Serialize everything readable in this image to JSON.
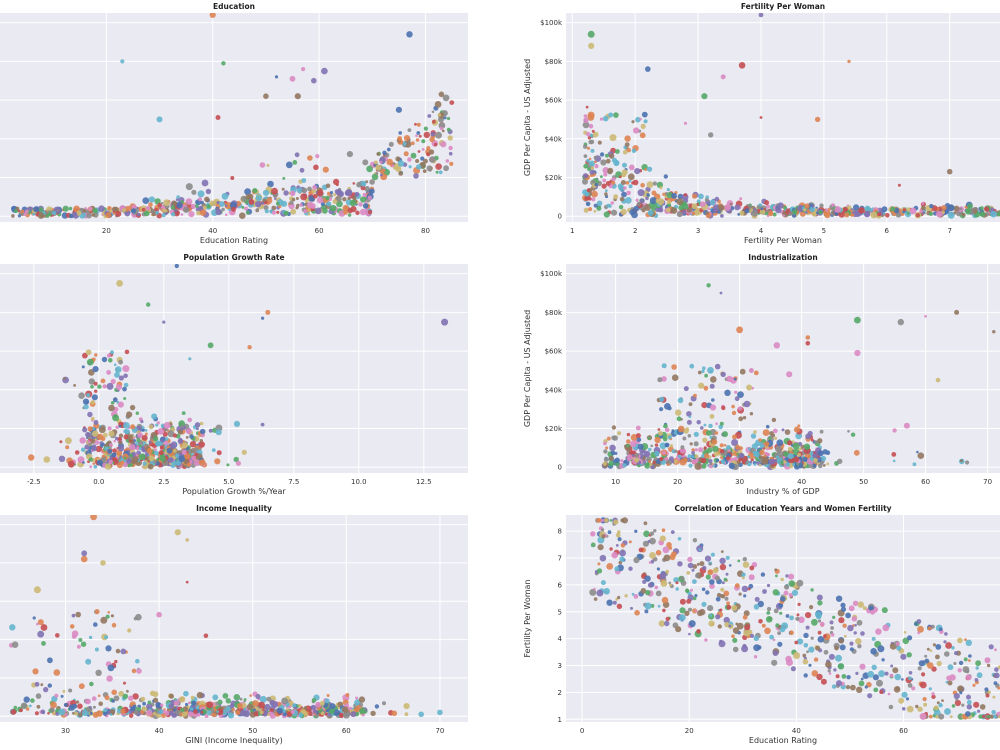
{
  "figure": {
    "panel_bg": "#eaeaf2",
    "grid_color": "#ffffff",
    "palette": [
      "#4c72b0",
      "#dd8452",
      "#55a868",
      "#c44e52",
      "#8172b3",
      "#937860",
      "#da8bc3",
      "#8c8c8c",
      "#ccb974",
      "#64b5cd"
    ]
  },
  "chart_data": [
    {
      "id": "education",
      "type": "scatter",
      "title": "Education",
      "xlabel": "Education Rating",
      "ylabel": "",
      "xlim": [
        0,
        88
      ],
      "ylim": [
        -3000,
        105000
      ],
      "xticks": [
        20,
        40,
        60,
        80
      ],
      "yticks": [
        0,
        20000,
        40000,
        60000,
        80000,
        100000
      ],
      "ytick_labels": [
        "",
        "",
        "",
        "",
        "",
        ""
      ],
      "grid": true,
      "n_points": 650,
      "x_range": [
        2,
        85
      ],
      "y_range": [
        0,
        104000
      ],
      "highlights": [
        [
          40,
          104000
        ],
        [
          77,
          94000
        ],
        [
          23,
          80000
        ],
        [
          42,
          79000
        ],
        [
          57,
          76000
        ],
        [
          61,
          75000
        ],
        [
          52,
          72000
        ],
        [
          55,
          71000
        ],
        [
          59,
          70000
        ],
        [
          50,
          62000
        ],
        [
          56,
          62000
        ],
        [
          75,
          55000
        ],
        [
          83,
          63000
        ],
        [
          30,
          50000
        ],
        [
          41,
          51000
        ]
      ]
    },
    {
      "id": "fertility",
      "type": "scatter",
      "title": "Fertility Per Woman",
      "xlabel": "Fertility Per Woman",
      "ylabel": "GDP Per Capita - US Adjusted",
      "xlim": [
        0.9,
        7.8
      ],
      "ylim": [
        -3000,
        105000
      ],
      "xticks": [
        1,
        2,
        3,
        4,
        5,
        6,
        7
      ],
      "yticks": [
        0,
        20000,
        40000,
        60000,
        80000,
        100000
      ],
      "ytick_labels": [
        "0",
        "$20k",
        "$40k",
        "$60k",
        "$80k",
        "$100k"
      ],
      "grid": true,
      "n_points": 650,
      "x_range": [
        1.2,
        7.8
      ],
      "y_range": [
        0,
        104000
      ],
      "highlights": [
        [
          4.0,
          104000
        ],
        [
          1.3,
          94000
        ],
        [
          1.3,
          88000
        ],
        [
          5.4,
          80000
        ],
        [
          3.7,
          78000
        ],
        [
          2.2,
          76000
        ],
        [
          3.4,
          72000
        ],
        [
          3.1,
          62000
        ],
        [
          4.0,
          51000
        ],
        [
          4.9,
          50000
        ],
        [
          2.8,
          48000
        ],
        [
          3.2,
          42000
        ],
        [
          7.0,
          23000
        ],
        [
          6.2,
          16000
        ]
      ]
    },
    {
      "id": "population",
      "type": "scatter",
      "title": "Population Growth Rate",
      "xlabel": "Population Growth %/Year",
      "ylabel": "",
      "xlim": [
        -3.8,
        14.2
      ],
      "ylim": [
        -3000,
        105000
      ],
      "xticks": [
        -2.5,
        0.0,
        2.5,
        5.0,
        7.5,
        10.0,
        12.5
      ],
      "xtick_labels": [
        "-2.5",
        "0.0",
        "2.5",
        "5.0",
        "7.5",
        "10.0",
        "12.5"
      ],
      "yticks": [
        0,
        20000,
        40000,
        60000,
        80000,
        100000
      ],
      "ytick_labels": [
        "",
        "",
        "",
        "",
        "",
        ""
      ],
      "grid": true,
      "n_points": 650,
      "x_range": [
        -2.6,
        13.4
      ],
      "y_range": [
        0,
        104000
      ],
      "highlights": [
        [
          3.0,
          104000
        ],
        [
          0.8,
          95000
        ],
        [
          1.9,
          84000
        ],
        [
          6.5,
          80000
        ],
        [
          6.3,
          77000
        ],
        [
          13.3,
          75000
        ],
        [
          5.8,
          62000
        ],
        [
          2.5,
          75000
        ],
        [
          4.3,
          63000
        ],
        [
          3.5,
          56000
        ],
        [
          -2.6,
          5000
        ],
        [
          -2.0,
          4000
        ],
        [
          6.3,
          22000
        ]
      ]
    },
    {
      "id": "industrialization",
      "type": "scatter",
      "title": "Industrialization",
      "xlabel": "Industry % of GDP",
      "ylabel": "GDP Per Capita - US Adjusted",
      "xlim": [
        2,
        72
      ],
      "ylim": [
        -3000,
        105000
      ],
      "xticks": [
        10,
        20,
        30,
        40,
        50,
        60,
        70
      ],
      "yticks": [
        0,
        20000,
        40000,
        60000,
        80000,
        100000
      ],
      "ytick_labels": [
        "0",
        "$20k",
        "$40k",
        "$60k",
        "$80k",
        "$100k"
      ],
      "grid": true,
      "n_points": 650,
      "x_range": [
        5,
        72
      ],
      "y_range": [
        0,
        95000
      ],
      "highlights": [
        [
          25,
          94000
        ],
        [
          27,
          90000
        ],
        [
          65,
          80000
        ],
        [
          49,
          76000
        ],
        [
          56,
          75000
        ],
        [
          60,
          78000
        ],
        [
          41,
          67000
        ],
        [
          30,
          71000
        ],
        [
          71,
          70000
        ],
        [
          41,
          64000
        ],
        [
          36,
          63000
        ],
        [
          49,
          59000
        ],
        [
          62,
          45000
        ],
        [
          38,
          48000
        ],
        [
          55,
          19000
        ]
      ]
    },
    {
      "id": "income",
      "type": "scatter",
      "title": "Income Inequality",
      "xlabel": "GINI (Income Inequality)",
      "ylabel": "",
      "xlim": [
        23,
        73
      ],
      "ylim": [
        -3000,
        105000
      ],
      "xticks": [
        30,
        40,
        50,
        60,
        70
      ],
      "yticks": [
        0,
        20000,
        40000,
        60000,
        80000,
        100000
      ],
      "ytick_labels": [
        "",
        "",
        "",
        "",
        "",
        ""
      ],
      "grid": true,
      "n_points": 650,
      "x_range": [
        23,
        71
      ],
      "y_range": [
        0,
        104000
      ],
      "highlights": [
        [
          33,
          104000
        ],
        [
          42,
          96000
        ],
        [
          43,
          92000
        ],
        [
          32,
          82000
        ],
        [
          34,
          80000
        ],
        [
          43,
          70000
        ],
        [
          32,
          85000
        ],
        [
          27,
          66000
        ],
        [
          45,
          42000
        ],
        [
          40,
          53000
        ],
        [
          68,
          1000
        ],
        [
          70,
          2000
        ]
      ]
    },
    {
      "id": "edu_fertility",
      "type": "scatter",
      "title": "Correlation of Education Years and Women Fertility",
      "xlabel": "Education Rating",
      "ylabel": "Fertility Per Woman",
      "xlim": [
        -3,
        78
      ],
      "ylim": [
        0.9,
        8.6
      ],
      "xticks": [
        0,
        20,
        40,
        60
      ],
      "yticks": [
        1,
        2,
        3,
        4,
        5,
        6,
        7,
        8
      ],
      "grid": true,
      "n_points": 650,
      "x_range": [
        2,
        78
      ],
      "y_range": [
        1.1,
        8.4
      ],
      "highlights": [
        [
          8,
          8.4
        ],
        [
          2,
          7.9
        ],
        [
          4,
          7.8
        ],
        [
          7,
          7.7
        ],
        [
          9,
          7.6
        ],
        [
          11,
          7.3
        ],
        [
          76,
          2.0
        ],
        [
          74,
          1.3
        ],
        [
          72,
          1.2
        ],
        [
          65,
          3.0
        ]
      ]
    }
  ]
}
